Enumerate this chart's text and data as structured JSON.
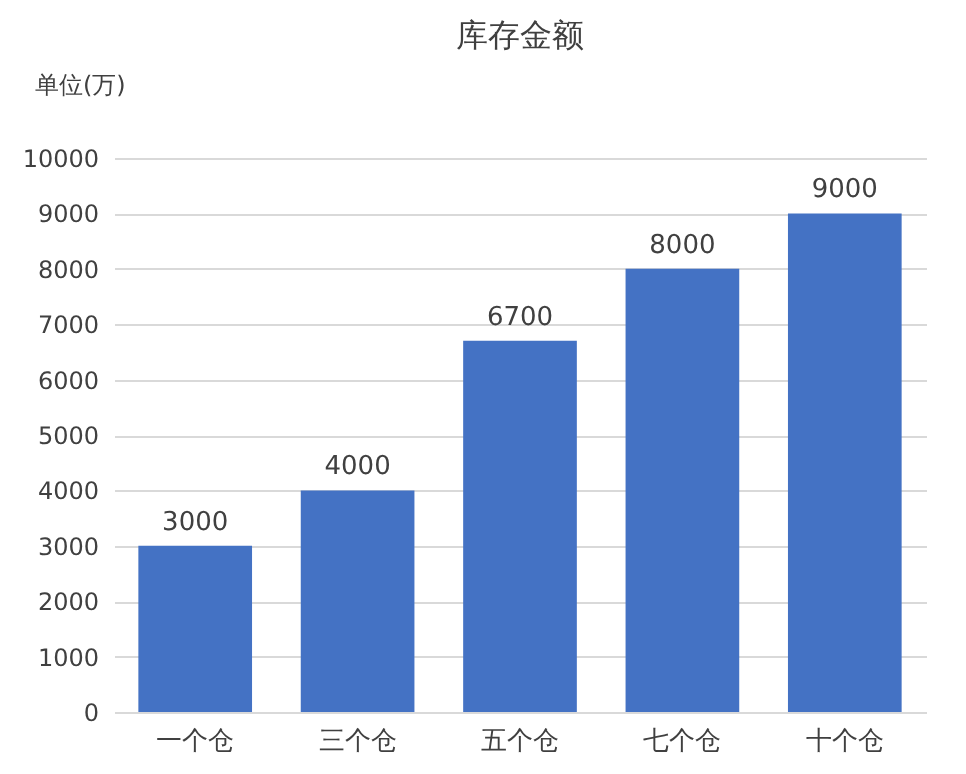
{
  "chart_data": {
    "type": "bar",
    "title": "库存金额",
    "ylabel": "单位(万)",
    "categories": [
      "一个仓",
      "三个仓",
      "五个仓",
      "七个仓",
      "十个仓"
    ],
    "values": [
      3000,
      4000,
      6700,
      8000,
      9000
    ],
    "color": "#4472c4",
    "ylim": [
      0,
      10000
    ],
    "yticks": [
      0,
      1000,
      2000,
      3000,
      4000,
      5000,
      6000,
      7000,
      8000,
      9000,
      10000
    ],
    "grid": "y",
    "data_labels": true
  }
}
